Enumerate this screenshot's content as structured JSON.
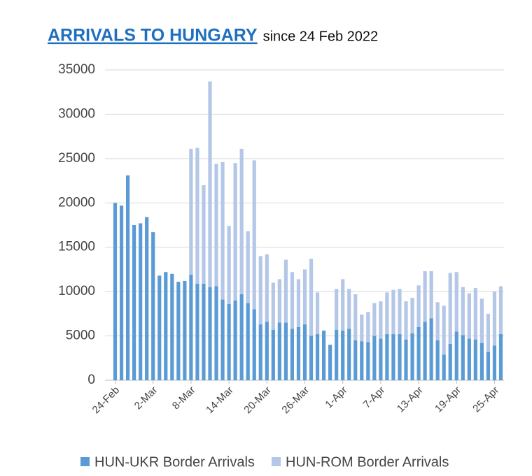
{
  "chart_data": {
    "type": "stacked_bar",
    "title": "ARRIVALS TO HUNGARY",
    "subtitle": "since 24 Feb 2022",
    "categories": [
      "24-Feb",
      null,
      null,
      null,
      null,
      null,
      "2-Mar",
      null,
      null,
      null,
      null,
      null,
      "8-Mar",
      null,
      null,
      null,
      null,
      null,
      "14-Mar",
      null,
      null,
      null,
      null,
      null,
      "20-Mar",
      null,
      null,
      null,
      null,
      null,
      "26-Mar",
      null,
      null,
      null,
      null,
      null,
      "1-Apr",
      null,
      null,
      null,
      null,
      null,
      "7-Apr",
      null,
      null,
      null,
      null,
      null,
      "13-Apr",
      null,
      null,
      null,
      null,
      null,
      "19-Apr",
      null,
      null,
      null,
      null,
      null,
      "25-Apr",
      null
    ],
    "series": [
      {
        "name": "HUN-UKR Border Arrivals",
        "color": "#5b9bd5",
        "values": [
          20000,
          19700,
          23100,
          17500,
          17700,
          18400,
          16700,
          11800,
          12200,
          12000,
          11100,
          11200,
          11900,
          10900,
          10900,
          10500,
          10600,
          9100,
          8600,
          9000,
          9700,
          8700,
          8000,
          6300,
          6600,
          5700,
          6500,
          6500,
          5800,
          6000,
          6300,
          5000,
          5200,
          5600,
          4000,
          5700,
          5600,
          5800,
          4500,
          4400,
          4300,
          5000,
          4700,
          5200,
          5200,
          5200,
          4600,
          5300,
          6000,
          6600,
          7000,
          4500,
          2900,
          4100,
          5500,
          5100,
          4700,
          4600,
          4200,
          3200,
          3900,
          5200
        ]
      },
      {
        "name": "HUN-ROM Border Arrivals",
        "color": "#b4c7e7",
        "values": [
          0,
          0,
          0,
          0,
          0,
          0,
          0,
          0,
          0,
          0,
          0,
          0,
          14200,
          15300,
          11100,
          23200,
          13800,
          15500,
          8800,
          15500,
          16400,
          8100,
          16800,
          7700,
          7600,
          5300,
          4900,
          7100,
          6400,
          5400,
          6200,
          8700,
          4700,
          0,
          0,
          4600,
          5800,
          4500,
          5200,
          3000,
          3400,
          3700,
          4200,
          4700,
          5000,
          5100,
          4300,
          4000,
          4700,
          5700,
          5300,
          4300,
          5500,
          8000,
          6700,
          5400,
          5100,
          5800,
          5000,
          4300,
          6100,
          5400
        ]
      }
    ],
    "ylim": [
      0,
      35000
    ],
    "yticks": [
      0,
      5000,
      10000,
      15000,
      20000,
      25000,
      30000,
      35000
    ],
    "grid": true,
    "legend": "bottom"
  }
}
